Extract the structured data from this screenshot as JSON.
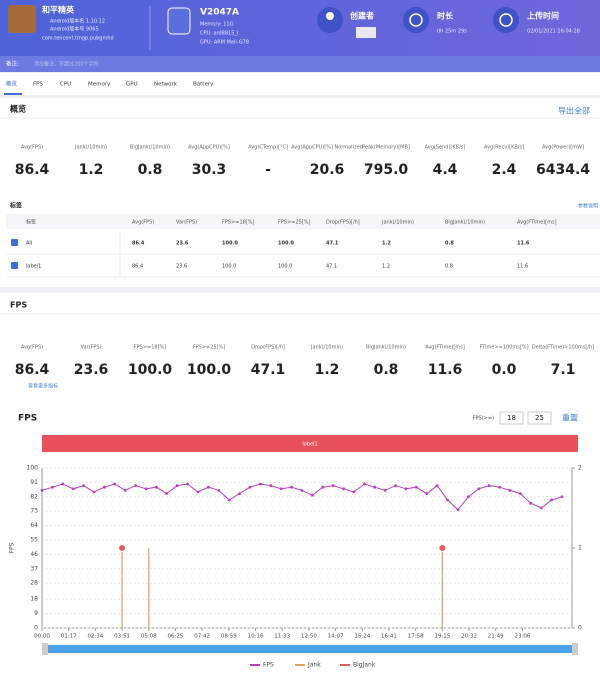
{
  "header": {
    "app_name": "和平精英",
    "app_version_name": "Android版本名 1.10.12",
    "app_version_code": "Android版本号 9065",
    "package": "com.tencent.tmgp.pubgmhd",
    "device": "V2047A",
    "memory": "Memory: 11G",
    "cpu": "CPU: ard8815_i",
    "gpu": "GPU: ARM Mali-G78",
    "creator_label": "创建者",
    "duration_label": "时长",
    "duration": "0h 25m 29s",
    "upload_label": "上传时间",
    "upload_time": "02/01/2021 16:04:28"
  },
  "note": {
    "label": "备注:",
    "placeholder": "添加备注，不超过200个字符"
  },
  "tabs": [
    "概览",
    "FPS",
    "CPU",
    "Memory",
    "GPU",
    "Network",
    "Battery"
  ],
  "overview": {
    "title": "概览",
    "export": "导出全部",
    "metrics": [
      {
        "label": "Avg(FPS)",
        "value": "86.4"
      },
      {
        "label": "Jank(/10min)",
        "value": "1.2"
      },
      {
        "label": "BigJank(/10min)",
        "value": "0.8"
      },
      {
        "label": "Avg(AppCPU)[%]",
        "value": "30.3"
      },
      {
        "label": "Avg(CTemp)[°C]",
        "value": "-"
      },
      {
        "label": "Avg(AppCPU)[%] Normalized",
        "value": "20.6"
      },
      {
        "label": "Peak(Memory)[MB]",
        "value": "795.0"
      },
      {
        "label": "Avg(Send)[KB/s]",
        "value": "4.4"
      },
      {
        "label": "Avg(Recv)[KB/s]",
        "value": "2.4"
      },
      {
        "label": "Avg(Power)[mW]",
        "value": "6434.4"
      }
    ],
    "labels_title": "标签",
    "param_link": "参数说明",
    "table": {
      "headers": [
        "标签",
        "Avg(FPS)",
        "Var(FPS)",
        "FPS>=18[%]",
        "FPS>=25[%]",
        "Drop(FPS)[/h]",
        "Jank(/10min)",
        "BigJank(/10min)",
        "Avg(FTime)[ms]"
      ],
      "rows": [
        [
          "All",
          "86.4",
          "23.6",
          "100.0",
          "100.0",
          "47.1",
          "1.2",
          "0.8",
          "11.6"
        ],
        [
          "label1",
          "86.4",
          "23.6",
          "100.0",
          "100.0",
          "47.1",
          "1.2",
          "0.8",
          "11.6"
        ]
      ]
    }
  },
  "fps": {
    "title": "FPS",
    "metrics": [
      {
        "label": "Avg(FPS)",
        "value": "86.4"
      },
      {
        "label": "Var(FPS)",
        "value": "23.6"
      },
      {
        "label": "FPS>=18[%]",
        "value": "100.0"
      },
      {
        "label": "FPS>=25[%]",
        "value": "100.0"
      },
      {
        "label": "Drop(FPS)[/h]",
        "value": "47.1"
      },
      {
        "label": "Jank(/10min)",
        "value": "1.2"
      },
      {
        "label": "BigJank(/10min)",
        "value": "0.8"
      },
      {
        "label": "Avg(FTime)[ms]",
        "value": "11.6"
      },
      {
        "label": "FTime>=100ms[%]",
        "value": "0.0"
      },
      {
        "label": "Delta(FTime)>100ms[/h]",
        "value": "7.1"
      }
    ],
    "more": "查看更多指标"
  },
  "chart_data": {
    "type": "line",
    "title": "FPS",
    "threshold_label": "FPS(>=)",
    "thresholds": [
      18,
      25
    ],
    "reset": "重置",
    "band_label": "label1",
    "ylabel": "FPS",
    "grid": true,
    "xlim": [
      0,
      1529
    ],
    "ylim": [
      0,
      100
    ],
    "y2lim": [
      0,
      2
    ],
    "xticks": [
      {
        "value": 0,
        "label": "00:00"
      },
      {
        "value": 77,
        "label": "01:17"
      },
      {
        "value": 154,
        "label": "02:34"
      },
      {
        "value": 231,
        "label": "03:51"
      },
      {
        "value": 308,
        "label": "05:08"
      },
      {
        "value": 385,
        "label": "06:25"
      },
      {
        "value": 462,
        "label": "07:42"
      },
      {
        "value": 539,
        "label": "08:59"
      },
      {
        "value": 616,
        "label": "10:16"
      },
      {
        "value": 693,
        "label": "11:33"
      },
      {
        "value": 770,
        "label": "12:50"
      },
      {
        "value": 847,
        "label": "14:07"
      },
      {
        "value": 924,
        "label": "15:24"
      },
      {
        "value": 1001,
        "label": "16:41"
      },
      {
        "value": 1078,
        "label": "17:58"
      },
      {
        "value": 1155,
        "label": "19:15"
      },
      {
        "value": 1232,
        "label": "20:32"
      },
      {
        "value": 1309,
        "label": "21:49"
      },
      {
        "value": 1386,
        "label": "23:06"
      }
    ],
    "yticks": [
      100,
      91,
      82,
      73,
      64,
      55,
      46,
      37,
      28,
      18,
      9,
      0
    ],
    "y2ticks": [
      0,
      1,
      2
    ],
    "series": [
      {
        "name": "FPS",
        "color": "#b83cc0",
        "x": [
          0,
          30,
          60,
          90,
          120,
          150,
          180,
          210,
          240,
          270,
          300,
          330,
          360,
          390,
          420,
          450,
          480,
          510,
          540,
          570,
          600,
          630,
          660,
          690,
          720,
          750,
          780,
          810,
          840,
          870,
          900,
          930,
          960,
          990,
          1020,
          1050,
          1080,
          1110,
          1140,
          1170,
          1200,
          1230,
          1260,
          1290,
          1320,
          1350,
          1380,
          1410,
          1440,
          1470,
          1500
        ],
        "values": [
          86,
          88,
          90,
          87,
          89,
          85,
          88,
          90,
          86,
          89,
          87,
          88,
          84,
          89,
          90,
          85,
          88,
          86,
          80,
          84,
          88,
          90,
          89,
          87,
          88,
          86,
          83,
          88,
          89,
          87,
          85,
          90,
          88,
          86,
          89,
          87,
          88,
          84,
          89,
          80,
          74,
          82,
          87,
          89,
          88,
          86,
          84,
          78,
          75,
          80,
          82
        ]
      },
      {
        "name": "Jank",
        "color": "#e0a060",
        "axis": "y2",
        "x": [
          231,
          308,
          1155
        ],
        "values": [
          1,
          1,
          1
        ]
      },
      {
        "name": "BigJank",
        "color": "#e85a5a",
        "axis": "y2",
        "x": [
          231,
          1155
        ],
        "values": [
          1,
          1
        ]
      }
    ]
  }
}
